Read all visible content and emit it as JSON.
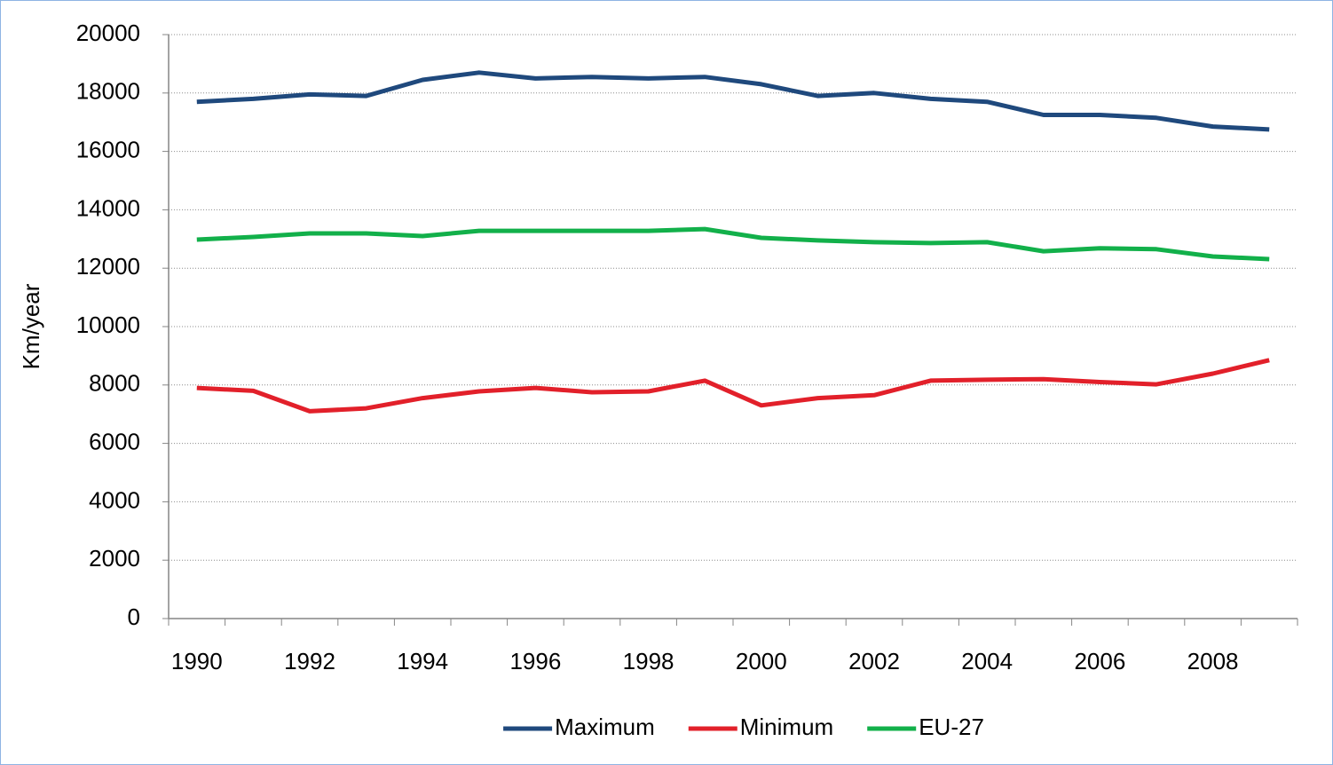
{
  "chart_data": {
    "type": "line",
    "ylabel": "Km/year",
    "categories": [
      "1990",
      null,
      "1992",
      null,
      "1994",
      null,
      "1996",
      null,
      "1998",
      null,
      "2000",
      null,
      "2002",
      null,
      "2004",
      null,
      "2006",
      null,
      "2008",
      null
    ],
    "series": [
      {
        "name": "Maximum",
        "color": "#1f497d",
        "values": [
          17700,
          17800,
          17950,
          17900,
          18450,
          18700,
          18500,
          18550,
          18500,
          18550,
          18300,
          17900,
          18000,
          17800,
          17700,
          17250,
          17250,
          17150,
          16850,
          16750
        ]
      },
      {
        "name": "Minimum",
        "color": "#e2202a",
        "values": [
          7900,
          7800,
          7100,
          7200,
          7550,
          7780,
          7900,
          7750,
          7780,
          8150,
          7300,
          7550,
          7650,
          8150,
          8180,
          8200,
          8100,
          8020,
          8390,
          8850
        ]
      },
      {
        "name": "EU-27",
        "color": "#12b04a",
        "values": [
          12980,
          13070,
          13190,
          13190,
          13100,
          13280,
          13280,
          13280,
          13280,
          13340,
          13040,
          12950,
          12890,
          12860,
          12890,
          12580,
          12680,
          12650,
          12400,
          12310
        ]
      }
    ],
    "ylim": [
      0,
      20000
    ],
    "yticks": [
      0,
      2000,
      4000,
      6000,
      8000,
      10000,
      12000,
      14000,
      16000,
      18000,
      20000
    ],
    "grid": true,
    "legend": "bottom"
  }
}
